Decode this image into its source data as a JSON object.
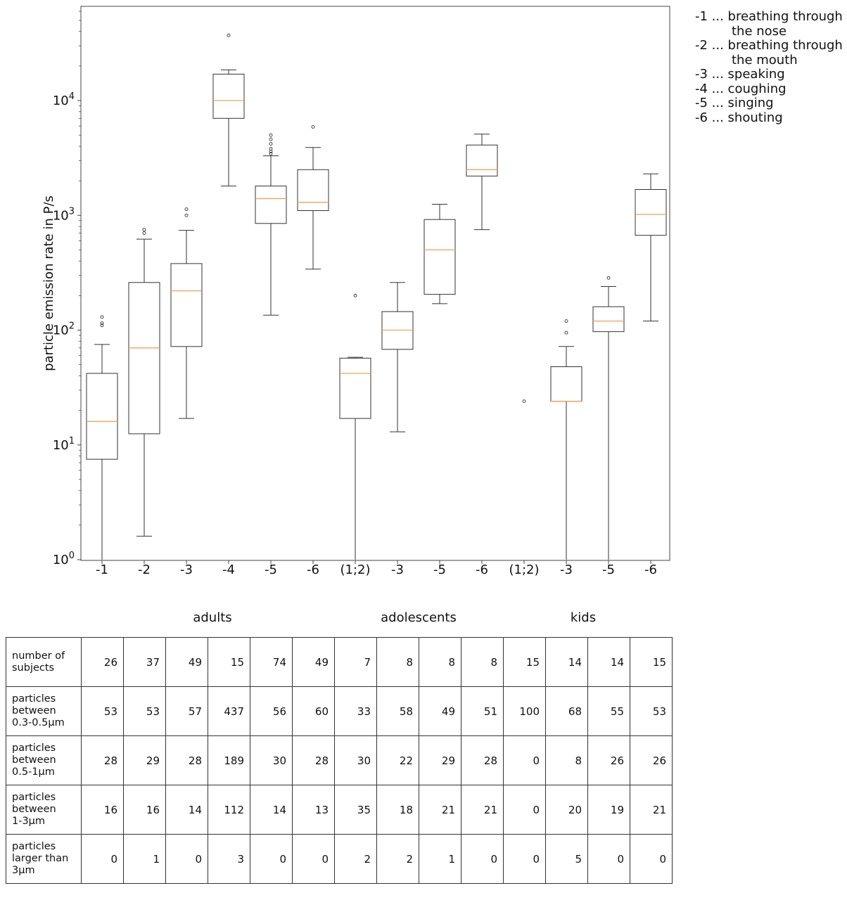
{
  "chart_data": {
    "type": "boxplot",
    "ylabel": "particle emission rate in P/s",
    "yscale": "log",
    "ylim": [
      1,
      60000
    ],
    "yticks": [
      {
        "value": 1,
        "base": "10",
        "exp": "0"
      },
      {
        "value": 10,
        "base": "10",
        "exp": "1"
      },
      {
        "value": 100,
        "base": "10",
        "exp": "2"
      },
      {
        "value": 1000,
        "base": "10",
        "exp": "3"
      },
      {
        "value": 10000,
        "base": "10",
        "exp": "4"
      }
    ],
    "categories": [
      "-1",
      "-2",
      "-3",
      "-4",
      "-5",
      "-6",
      "(1;2)",
      "-3",
      "-5",
      "-6",
      "(1;2)",
      "-3",
      "-5",
      "-6"
    ],
    "boxes": [
      {
        "q1": 7.5,
        "median": 16,
        "q3": 42,
        "whislo": 1,
        "whishi": 75,
        "fliers": [
          110,
          115,
          130
        ]
      },
      {
        "q1": 12.5,
        "median": 70,
        "q3": 260,
        "whislo": 1.6,
        "whishi": 620,
        "fliers": [
          700,
          750
        ]
      },
      {
        "q1": 72,
        "median": 220,
        "q3": 380,
        "whislo": 17,
        "whishi": 740,
        "fliers": [
          1000,
          1130
        ]
      },
      {
        "q1": 7000,
        "median": 10000,
        "q3": 17000,
        "whislo": 1800,
        "whishi": 18500,
        "fliers": [
          37000
        ]
      },
      {
        "q1": 850,
        "median": 1400,
        "q3": 1800,
        "whislo": 135,
        "whishi": 3300,
        "fliers": [
          3450,
          3600,
          3800,
          4200,
          4600,
          5000
        ]
      },
      {
        "q1": 1100,
        "median": 1300,
        "q3": 2500,
        "whislo": 340,
        "whishi": 3900,
        "fliers": [
          5900
        ]
      },
      {
        "q1": 17,
        "median": 42,
        "q3": 57,
        "whislo": 1,
        "whishi": 58,
        "fliers": [
          200
        ]
      },
      {
        "q1": 68,
        "median": 100,
        "q3": 145,
        "whislo": 13,
        "whishi": 260,
        "fliers": []
      },
      {
        "q1": 205,
        "median": 500,
        "q3": 920,
        "whislo": 170,
        "whishi": 1250,
        "fliers": []
      },
      {
        "q1": 2200,
        "median": 2500,
        "q3": 4100,
        "whislo": 750,
        "whishi": 5100,
        "fliers": []
      },
      {
        "q1": 24,
        "median": 24,
        "q3": 24,
        "whislo": 24,
        "whishi": 24,
        "single": true,
        "fliers": [
          24
        ]
      },
      {
        "q1": 24,
        "median": 24,
        "q3": 48,
        "whislo": 1,
        "whishi": 72,
        "fliers": [
          95,
          120
        ]
      },
      {
        "q1": 97,
        "median": 120,
        "q3": 160,
        "whislo": 1,
        "whishi": 240,
        "fliers": [
          285
        ]
      },
      {
        "q1": 670,
        "median": 1020,
        "q3": 1680,
        "whislo": 120,
        "whishi": 2300,
        "fliers": []
      }
    ],
    "colors": {
      "box": "#333333",
      "median": "#f5a05a",
      "frame": "#444444"
    }
  },
  "legend": [
    {
      "line1": "-1 ... breathing through",
      "line2": "the nose"
    },
    {
      "line1": "-2 ... breathing through",
      "line2": "the mouth"
    },
    {
      "line1": "-3 ... speaking",
      "line2": ""
    },
    {
      "line1": "-4 ... coughing",
      "line2": ""
    },
    {
      "line1": "-5 ... singing",
      "line2": ""
    },
    {
      "line1": "-6 ... shouting",
      "line2": ""
    }
  ],
  "groups": [
    "adults",
    "adolescents",
    "kids"
  ],
  "table": {
    "rows": [
      {
        "label": [
          "number of",
          "subjects"
        ],
        "values": [
          "26",
          "37",
          "49",
          "15",
          "74",
          "49",
          "7",
          "8",
          "8",
          "8",
          "15",
          "14",
          "14",
          "15"
        ]
      },
      {
        "label": [
          "particles",
          "between",
          "0.3-0.5μm"
        ],
        "values": [
          "53",
          "53",
          "57",
          "437",
          "56",
          "60",
          "33",
          "58",
          "49",
          "51",
          "100",
          "68",
          "55",
          "53"
        ]
      },
      {
        "label": [
          "particles",
          "between",
          "0.5-1μm"
        ],
        "values": [
          "28",
          "29",
          "28",
          "189",
          "30",
          "28",
          "30",
          "22",
          "29",
          "28",
          "0",
          "8",
          "26",
          "26"
        ]
      },
      {
        "label": [
          "particles",
          "between",
          "1-3μm"
        ],
        "values": [
          "16",
          "16",
          "14",
          "112",
          "14",
          "13",
          "35",
          "18",
          "21",
          "21",
          "0",
          "20",
          "19",
          "21"
        ]
      },
      {
        "label": [
          "particles",
          "larger than",
          "3μm"
        ],
        "values": [
          "0",
          "1",
          "0",
          "3",
          "0",
          "0",
          "2",
          "2",
          "1",
          "0",
          "0",
          "5",
          "0",
          "0"
        ]
      }
    ]
  }
}
